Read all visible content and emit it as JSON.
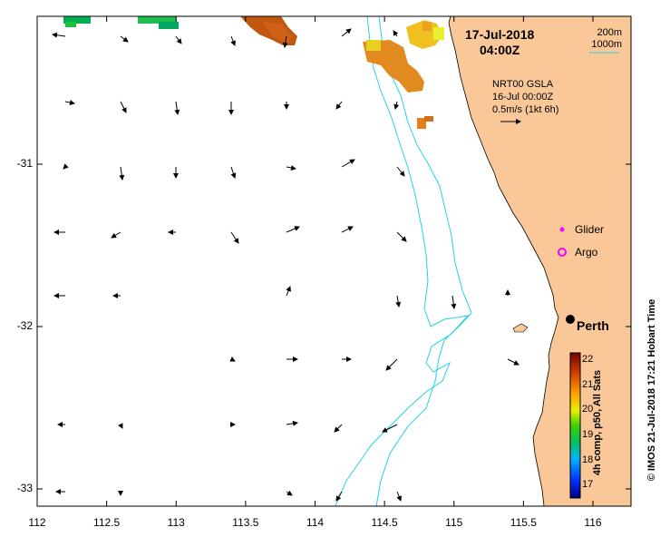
{
  "map": {
    "date_line1": "17-Jul-2018",
    "date_line2": "04:00Z",
    "depth_legend": [
      "200m",
      "1000m"
    ],
    "vector_legend": {
      "line1": "NRT00 GSLA",
      "line2": "16-Jul 00:00Z",
      "line3": "0.5m/s (1kt 6h)"
    },
    "markers": {
      "glider_label": "Glider",
      "argo_label": "Argo",
      "city_label": "Perth"
    },
    "lon_ticks": [
      "112",
      "112.5",
      "113",
      "113.5",
      "114",
      "114.5",
      "115",
      "115.5",
      "116"
    ],
    "lat_ticks": [
      "-31",
      "-32",
      "-33"
    ],
    "colorbar": {
      "title": "4h comp, p50, All Sats",
      "ticks": [
        "22",
        "21",
        "20",
        "19",
        "18",
        "17"
      ],
      "range": [
        16.5,
        22.3
      ]
    },
    "side_credit": "© IMOS 21-Jul-2018 17:21 Hobart Time",
    "colors": {
      "land": "#fac898",
      "isobath": "#22d3e8",
      "marker": "#ff00ff"
    },
    "icons": [
      "glider-marker-icon",
      "argo-marker-icon",
      "perth-city-icon"
    ]
  }
}
